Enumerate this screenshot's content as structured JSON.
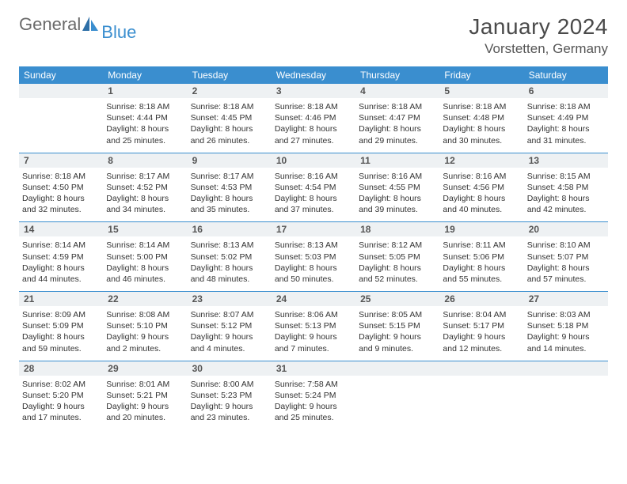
{
  "logo": {
    "text1": "General",
    "text2": "Blue"
  },
  "title": "January 2024",
  "location": "Vorstetten, Germany",
  "dayNames": [
    "Sunday",
    "Monday",
    "Tuesday",
    "Wednesday",
    "Thursday",
    "Friday",
    "Saturday"
  ],
  "colors": {
    "headerBlue": "#3a8ecf",
    "rowGray": "#eef1f3",
    "text": "#333333"
  },
  "weeks": [
    {
      "nums": [
        "",
        "1",
        "2",
        "3",
        "4",
        "5",
        "6"
      ],
      "cells": [
        {
          "lines": []
        },
        {
          "lines": [
            "Sunrise: 8:18 AM",
            "Sunset: 4:44 PM",
            "Daylight: 8 hours and 25 minutes."
          ]
        },
        {
          "lines": [
            "Sunrise: 8:18 AM",
            "Sunset: 4:45 PM",
            "Daylight: 8 hours and 26 minutes."
          ]
        },
        {
          "lines": [
            "Sunrise: 8:18 AM",
            "Sunset: 4:46 PM",
            "Daylight: 8 hours and 27 minutes."
          ]
        },
        {
          "lines": [
            "Sunrise: 8:18 AM",
            "Sunset: 4:47 PM",
            "Daylight: 8 hours and 29 minutes."
          ]
        },
        {
          "lines": [
            "Sunrise: 8:18 AM",
            "Sunset: 4:48 PM",
            "Daylight: 8 hours and 30 minutes."
          ]
        },
        {
          "lines": [
            "Sunrise: 8:18 AM",
            "Sunset: 4:49 PM",
            "Daylight: 8 hours and 31 minutes."
          ]
        }
      ]
    },
    {
      "nums": [
        "7",
        "8",
        "9",
        "10",
        "11",
        "12",
        "13"
      ],
      "cells": [
        {
          "lines": [
            "Sunrise: 8:18 AM",
            "Sunset: 4:50 PM",
            "Daylight: 8 hours and 32 minutes."
          ]
        },
        {
          "lines": [
            "Sunrise: 8:17 AM",
            "Sunset: 4:52 PM",
            "Daylight: 8 hours and 34 minutes."
          ]
        },
        {
          "lines": [
            "Sunrise: 8:17 AM",
            "Sunset: 4:53 PM",
            "Daylight: 8 hours and 35 minutes."
          ]
        },
        {
          "lines": [
            "Sunrise: 8:16 AM",
            "Sunset: 4:54 PM",
            "Daylight: 8 hours and 37 minutes."
          ]
        },
        {
          "lines": [
            "Sunrise: 8:16 AM",
            "Sunset: 4:55 PM",
            "Daylight: 8 hours and 39 minutes."
          ]
        },
        {
          "lines": [
            "Sunrise: 8:16 AM",
            "Sunset: 4:56 PM",
            "Daylight: 8 hours and 40 minutes."
          ]
        },
        {
          "lines": [
            "Sunrise: 8:15 AM",
            "Sunset: 4:58 PM",
            "Daylight: 8 hours and 42 minutes."
          ]
        }
      ]
    },
    {
      "nums": [
        "14",
        "15",
        "16",
        "17",
        "18",
        "19",
        "20"
      ],
      "cells": [
        {
          "lines": [
            "Sunrise: 8:14 AM",
            "Sunset: 4:59 PM",
            "Daylight: 8 hours and 44 minutes."
          ]
        },
        {
          "lines": [
            "Sunrise: 8:14 AM",
            "Sunset: 5:00 PM",
            "Daylight: 8 hours and 46 minutes."
          ]
        },
        {
          "lines": [
            "Sunrise: 8:13 AM",
            "Sunset: 5:02 PM",
            "Daylight: 8 hours and 48 minutes."
          ]
        },
        {
          "lines": [
            "Sunrise: 8:13 AM",
            "Sunset: 5:03 PM",
            "Daylight: 8 hours and 50 minutes."
          ]
        },
        {
          "lines": [
            "Sunrise: 8:12 AM",
            "Sunset: 5:05 PM",
            "Daylight: 8 hours and 52 minutes."
          ]
        },
        {
          "lines": [
            "Sunrise: 8:11 AM",
            "Sunset: 5:06 PM",
            "Daylight: 8 hours and 55 minutes."
          ]
        },
        {
          "lines": [
            "Sunrise: 8:10 AM",
            "Sunset: 5:07 PM",
            "Daylight: 8 hours and 57 minutes."
          ]
        }
      ]
    },
    {
      "nums": [
        "21",
        "22",
        "23",
        "24",
        "25",
        "26",
        "27"
      ],
      "cells": [
        {
          "lines": [
            "Sunrise: 8:09 AM",
            "Sunset: 5:09 PM",
            "Daylight: 8 hours and 59 minutes."
          ]
        },
        {
          "lines": [
            "Sunrise: 8:08 AM",
            "Sunset: 5:10 PM",
            "Daylight: 9 hours and 2 minutes."
          ]
        },
        {
          "lines": [
            "Sunrise: 8:07 AM",
            "Sunset: 5:12 PM",
            "Daylight: 9 hours and 4 minutes."
          ]
        },
        {
          "lines": [
            "Sunrise: 8:06 AM",
            "Sunset: 5:13 PM",
            "Daylight: 9 hours and 7 minutes."
          ]
        },
        {
          "lines": [
            "Sunrise: 8:05 AM",
            "Sunset: 5:15 PM",
            "Daylight: 9 hours and 9 minutes."
          ]
        },
        {
          "lines": [
            "Sunrise: 8:04 AM",
            "Sunset: 5:17 PM",
            "Daylight: 9 hours and 12 minutes."
          ]
        },
        {
          "lines": [
            "Sunrise: 8:03 AM",
            "Sunset: 5:18 PM",
            "Daylight: 9 hours and 14 minutes."
          ]
        }
      ]
    },
    {
      "nums": [
        "28",
        "29",
        "30",
        "31",
        "",
        "",
        ""
      ],
      "cells": [
        {
          "lines": [
            "Sunrise: 8:02 AM",
            "Sunset: 5:20 PM",
            "Daylight: 9 hours and 17 minutes."
          ]
        },
        {
          "lines": [
            "Sunrise: 8:01 AM",
            "Sunset: 5:21 PM",
            "Daylight: 9 hours and 20 minutes."
          ]
        },
        {
          "lines": [
            "Sunrise: 8:00 AM",
            "Sunset: 5:23 PM",
            "Daylight: 9 hours and 23 minutes."
          ]
        },
        {
          "lines": [
            "Sunrise: 7:58 AM",
            "Sunset: 5:24 PM",
            "Daylight: 9 hours and 25 minutes."
          ]
        },
        {
          "lines": []
        },
        {
          "lines": []
        },
        {
          "lines": []
        }
      ]
    }
  ]
}
